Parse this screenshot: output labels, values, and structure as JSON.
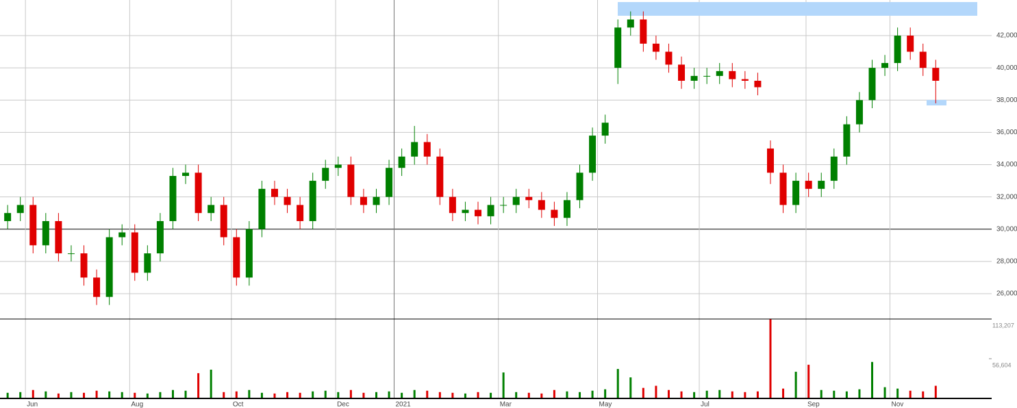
{
  "chart_data": {
    "type": "candlestick",
    "x": [
      0,
      5,
      10,
      15,
      20,
      25,
      30,
      35,
      40,
      45,
      50,
      55,
      60,
      65,
      70,
      75,
      80,
      85,
      90,
      95,
      100,
      105,
      110,
      115,
      120,
      125,
      130,
      135,
      140,
      145,
      150,
      155,
      160,
      165,
      170,
      175,
      180,
      185,
      190,
      195,
      200,
      205,
      210,
      215,
      220,
      225,
      230,
      235,
      240,
      245,
      250,
      255,
      260,
      265,
      270,
      275,
      280,
      285,
      290,
      295,
      300,
      305,
      310,
      315,
      320,
      325,
      330,
      335,
      340,
      345,
      350,
      355,
      360,
      365
    ],
    "open": [
      30500,
      31000,
      31500,
      29000,
      30500,
      28500,
      28500,
      27000,
      25800,
      29500,
      29800,
      27300,
      28500,
      30500,
      33300,
      33500,
      31000,
      31500,
      29500,
      27000,
      30000,
      32500,
      32000,
      31500,
      30500,
      33000,
      33800,
      34000,
      32000,
      31500,
      32000,
      33800,
      34500,
      35400,
      34500,
      32000,
      31000,
      31200,
      30800,
      31500,
      31500,
      32000,
      31800,
      31200,
      30700,
      31800,
      33500,
      35800,
      40000,
      42500,
      43000,
      41500,
      41000,
      40200,
      39200,
      39500,
      39500,
      39800,
      39300,
      39200,
      35000,
      33500,
      31500,
      33000,
      32500,
      33000,
      34500,
      36500,
      38000,
      40000,
      40300,
      42000,
      41000,
      40000
    ],
    "high": [
      31500,
      32000,
      32000,
      31000,
      31000,
      29000,
      29000,
      27500,
      30000,
      30300,
      30300,
      29000,
      31000,
      33800,
      34000,
      34000,
      32000,
      32000,
      30000,
      30500,
      33000,
      33000,
      32500,
      32000,
      33500,
      34300,
      34500,
      34500,
      32500,
      32500,
      34300,
      35000,
      36400,
      35900,
      35000,
      32500,
      31700,
      31700,
      32000,
      32000,
      32500,
      32500,
      32300,
      31700,
      32300,
      34000,
      36300,
      37100,
      43000,
      43500,
      43500,
      42000,
      41500,
      40700,
      40000,
      40000,
      40300,
      40300,
      39800,
      39700,
      35500,
      34000,
      33500,
      33500,
      33500,
      35000,
      37000,
      38500,
      40500,
      40800,
      42500,
      42500,
      41500,
      40500
    ],
    "low": [
      30000,
      30500,
      28500,
      28500,
      28000,
      28000,
      26500,
      25300,
      25300,
      29000,
      26800,
      26800,
      28000,
      30000,
      32800,
      30500,
      30500,
      29000,
      26500,
      26500,
      29500,
      31500,
      31000,
      30000,
      30000,
      32500,
      33300,
      31500,
      31000,
      31000,
      31500,
      33300,
      34000,
      34000,
      31500,
      30500,
      30500,
      30300,
      30300,
      31000,
      31000,
      31300,
      30700,
      30200,
      30200,
      31300,
      33000,
      35300,
      39000,
      42000,
      41000,
      40500,
      39700,
      38700,
      38700,
      39000,
      39000,
      38800,
      38700,
      38300,
      32800,
      31000,
      31000,
      32000,
      32000,
      32500,
      34000,
      36000,
      37500,
      39500,
      39800,
      40500,
      39500,
      37800
    ],
    "close": [
      31000,
      31500,
      29000,
      30500,
      28500,
      28500,
      27000,
      25800,
      29500,
      29800,
      27300,
      28500,
      30500,
      33300,
      33500,
      31000,
      31500,
      29500,
      27000,
      30000,
      32500,
      32000,
      31500,
      30500,
      33000,
      33800,
      34000,
      32000,
      31500,
      32000,
      33800,
      34500,
      35400,
      34500,
      32000,
      31000,
      31200,
      30800,
      31500,
      31500,
      32000,
      31800,
      31200,
      30700,
      31800,
      33500,
      35800,
      36600,
      42500,
      43000,
      41500,
      41000,
      40200,
      39200,
      39500,
      39500,
      39800,
      39300,
      39200,
      38800,
      33500,
      31500,
      33000,
      32500,
      33000,
      34500,
      36500,
      38000,
      40000,
      40300,
      42000,
      41000,
      40000,
      39200
    ],
    "volume": [
      8000,
      9000,
      12000,
      10000,
      7000,
      9000,
      8000,
      11000,
      10000,
      9000,
      8000,
      7000,
      9000,
      12000,
      11000,
      36000,
      41000,
      9000,
      10000,
      12000,
      8000,
      7000,
      9000,
      8000,
      10000,
      11000,
      9000,
      12000,
      8000,
      9000,
      10000,
      8000,
      12000,
      11000,
      9000,
      8000,
      7000,
      9000,
      8000,
      37000,
      9000,
      8000,
      7000,
      12000,
      10000,
      9000,
      11000,
      13000,
      42000,
      30000,
      15000,
      18000,
      12000,
      10000,
      9000,
      11000,
      12000,
      10000,
      9000,
      10000,
      113207,
      14000,
      38000,
      48000,
      12000,
      11000,
      10000,
      13000,
      52000,
      16000,
      14000,
      11000,
      10000,
      18000
    ],
    "up_color": "#008000",
    "down_color": "#e00000",
    "xlim": [
      -3,
      387
    ],
    "xticks": [
      {
        "value": 7,
        "label": "Jun"
      },
      {
        "value": 48,
        "label": "Aug"
      },
      {
        "value": 88,
        "label": "Oct"
      },
      {
        "value": 129,
        "label": "Dec"
      },
      {
        "value": 152,
        "label": "2021"
      },
      {
        "value": 193,
        "label": "Mar"
      },
      {
        "value": 232,
        "label": "May"
      },
      {
        "value": 272,
        "label": "Jul"
      },
      {
        "value": 314,
        "label": "Sep"
      },
      {
        "value": 347,
        "label": "Nov"
      }
    ],
    "ylim": [
      24430,
      44207
    ],
    "yticks": [
      {
        "value": 26000,
        "label": "26,000"
      },
      {
        "value": 28000,
        "label": "28,000"
      },
      {
        "value": 30000,
        "label": "30,000"
      },
      {
        "value": 32000,
        "label": "32,000"
      },
      {
        "value": 34000,
        "label": "34,000"
      },
      {
        "value": 36000,
        "label": "36,000"
      },
      {
        "value": 38000,
        "label": "38,000"
      },
      {
        "value": 40000,
        "label": "40,000"
      },
      {
        "value": 42000,
        "label": "42,000"
      }
    ],
    "y2lim": [
      0,
      113207
    ],
    "y2ticks": [
      {
        "value": 56604,
        "label": "56,604"
      },
      {
        "value": 113207,
        "label": "113,207"
      }
    ],
    "grid": true
  }
}
